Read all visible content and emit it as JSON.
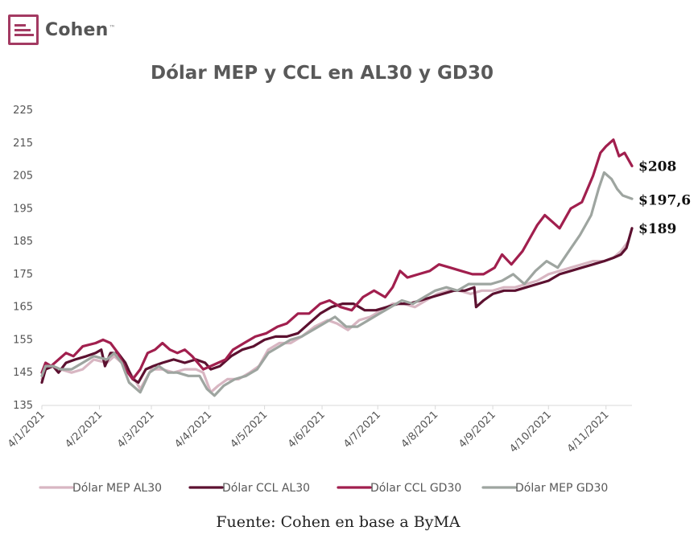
{
  "logo": {
    "text": "Cohen",
    "tm": "™"
  },
  "source": "Fuente: Cohen en base a ByMA",
  "colors": {
    "mep_al30": "#d8b6c2",
    "ccl_al30": "#5c1130",
    "ccl_gd30": "#a11f4e",
    "mep_gd30": "#9ea5a0"
  },
  "chart_data": {
    "type": "line",
    "title": "Dólar MEP y CCL en AL30 y GD30",
    "xlabel": "",
    "ylabel": "",
    "ylim": [
      135,
      225
    ],
    "yticks": [
      135,
      145,
      155,
      165,
      175,
      185,
      195,
      205,
      215,
      225
    ],
    "xlim": [
      "2021-01-04",
      "2021-11-18"
    ],
    "xticks": [
      {
        "date": "2021-01-04",
        "label": "4/1/2021"
      },
      {
        "date": "2021-02-04",
        "label": "4/2/2021"
      },
      {
        "date": "2021-03-04",
        "label": "4/3/2021"
      },
      {
        "date": "2021-04-04",
        "label": "4/4/2021"
      },
      {
        "date": "2021-05-04",
        "label": "4/5/2021"
      },
      {
        "date": "2021-06-04",
        "label": "4/6/2021"
      },
      {
        "date": "2021-07-04",
        "label": "4/7/2021"
      },
      {
        "date": "2021-08-04",
        "label": "4/8/2021"
      },
      {
        "date": "2021-09-04",
        "label": "4/9/2021"
      },
      {
        "date": "2021-10-04",
        "label": "4/10/2021"
      },
      {
        "date": "2021-11-04",
        "label": "4/11/2021"
      }
    ],
    "grid": false,
    "legend_position": "bottom",
    "series": [
      {
        "name": "Dólar MEP AL30",
        "color": "#d8b6c2",
        "points": [
          [
            "2021-01-04",
            143
          ],
          [
            "2021-01-06",
            146
          ],
          [
            "2021-01-10",
            147
          ],
          [
            "2021-01-14",
            146
          ],
          [
            "2021-01-20",
            145
          ],
          [
            "2021-01-26",
            146
          ],
          [
            "2021-02-01",
            149
          ],
          [
            "2021-02-08",
            148
          ],
          [
            "2021-02-12",
            150
          ],
          [
            "2021-02-18",
            147
          ],
          [
            "2021-02-23",
            143
          ],
          [
            "2021-02-26",
            140
          ],
          [
            "2021-03-04",
            146
          ],
          [
            "2021-03-10",
            146
          ],
          [
            "2021-03-16",
            145
          ],
          [
            "2021-03-22",
            146
          ],
          [
            "2021-03-28",
            146
          ],
          [
            "2021-04-01",
            145
          ],
          [
            "2021-04-05",
            139
          ],
          [
            "2021-04-09",
            141
          ],
          [
            "2021-04-14",
            143
          ],
          [
            "2021-04-20",
            143
          ],
          [
            "2021-04-26",
            145
          ],
          [
            "2021-05-01",
            147
          ],
          [
            "2021-05-06",
            152
          ],
          [
            "2021-05-12",
            154
          ],
          [
            "2021-05-18",
            154
          ],
          [
            "2021-05-24",
            156
          ],
          [
            "2021-05-31",
            159
          ],
          [
            "2021-06-07",
            161
          ],
          [
            "2021-06-12",
            160
          ],
          [
            "2021-06-18",
            158
          ],
          [
            "2021-06-24",
            161
          ],
          [
            "2021-06-30",
            162
          ],
          [
            "2021-07-06",
            164
          ],
          [
            "2021-07-12",
            166
          ],
          [
            "2021-07-18",
            166
          ],
          [
            "2021-07-24",
            165
          ],
          [
            "2021-07-30",
            167
          ],
          [
            "2021-08-05",
            169
          ],
          [
            "2021-08-11",
            170
          ],
          [
            "2021-08-17",
            170
          ],
          [
            "2021-08-23",
            169
          ],
          [
            "2021-08-29",
            170
          ],
          [
            "2021-09-04",
            170
          ],
          [
            "2021-09-10",
            171
          ],
          [
            "2021-09-16",
            171
          ],
          [
            "2021-09-22",
            172
          ],
          [
            "2021-09-28",
            173
          ],
          [
            "2021-10-04",
            175
          ],
          [
            "2021-10-10",
            176
          ],
          [
            "2021-10-16",
            177
          ],
          [
            "2021-10-22",
            178
          ],
          [
            "2021-10-28",
            179
          ],
          [
            "2021-11-03",
            179
          ],
          [
            "2021-11-08",
            180
          ],
          [
            "2021-11-12",
            182
          ],
          [
            "2021-11-16",
            185
          ]
        ]
      },
      {
        "name": "Dólar CCL AL30",
        "color": "#5c1130",
        "points": [
          [
            "2021-01-04",
            142
          ],
          [
            "2021-01-06",
            146
          ],
          [
            "2021-01-10",
            147
          ],
          [
            "2021-01-13",
            145
          ],
          [
            "2021-01-17",
            148
          ],
          [
            "2021-01-22",
            149
          ],
          [
            "2021-01-28",
            150
          ],
          [
            "2021-02-02",
            151
          ],
          [
            "2021-02-05",
            152
          ],
          [
            "2021-02-07",
            147
          ],
          [
            "2021-02-10",
            151
          ],
          [
            "2021-02-14",
            151
          ],
          [
            "2021-02-18",
            148
          ],
          [
            "2021-02-22",
            143
          ],
          [
            "2021-02-25",
            142
          ],
          [
            "2021-03-01",
            146
          ],
          [
            "2021-03-05",
            147
          ],
          [
            "2021-03-10",
            148
          ],
          [
            "2021-03-16",
            149
          ],
          [
            "2021-03-22",
            148
          ],
          [
            "2021-03-28",
            149
          ],
          [
            "2021-04-02",
            148
          ],
          [
            "2021-04-05",
            146
          ],
          [
            "2021-04-10",
            147
          ],
          [
            "2021-04-16",
            150
          ],
          [
            "2021-04-22",
            152
          ],
          [
            "2021-04-28",
            153
          ],
          [
            "2021-05-04",
            155
          ],
          [
            "2021-05-10",
            156
          ],
          [
            "2021-05-16",
            156
          ],
          [
            "2021-05-22",
            157
          ],
          [
            "2021-05-28",
            160
          ],
          [
            "2021-06-03",
            163
          ],
          [
            "2021-06-09",
            165
          ],
          [
            "2021-06-15",
            166
          ],
          [
            "2021-06-21",
            166
          ],
          [
            "2021-06-27",
            164
          ],
          [
            "2021-07-03",
            164
          ],
          [
            "2021-07-09",
            165
          ],
          [
            "2021-07-15",
            166
          ],
          [
            "2021-07-21",
            166
          ],
          [
            "2021-07-27",
            167
          ],
          [
            "2021-08-02",
            168
          ],
          [
            "2021-08-08",
            169
          ],
          [
            "2021-08-14",
            170
          ],
          [
            "2021-08-20",
            170
          ],
          [
            "2021-08-25",
            171
          ],
          [
            "2021-08-26",
            165
          ],
          [
            "2021-08-30",
            167
          ],
          [
            "2021-09-04",
            169
          ],
          [
            "2021-09-10",
            170
          ],
          [
            "2021-09-16",
            170
          ],
          [
            "2021-09-22",
            171
          ],
          [
            "2021-09-28",
            172
          ],
          [
            "2021-10-04",
            173
          ],
          [
            "2021-10-10",
            175
          ],
          [
            "2021-10-16",
            176
          ],
          [
            "2021-10-22",
            177
          ],
          [
            "2021-10-28",
            178
          ],
          [
            "2021-11-03",
            179
          ],
          [
            "2021-11-08",
            180
          ],
          [
            "2021-11-12",
            181
          ],
          [
            "2021-11-15",
            183
          ],
          [
            "2021-11-18",
            189
          ]
        ]
      },
      {
        "name": "Dólar CCL GD30",
        "color": "#a11f4e",
        "points": [
          [
            "2021-01-04",
            145
          ],
          [
            "2021-01-06",
            148
          ],
          [
            "2021-01-09",
            147
          ],
          [
            "2021-01-13",
            149
          ],
          [
            "2021-01-17",
            151
          ],
          [
            "2021-01-21",
            150
          ],
          [
            "2021-01-26",
            153
          ],
          [
            "2021-02-02",
            154
          ],
          [
            "2021-02-06",
            155
          ],
          [
            "2021-02-10",
            154
          ],
          [
            "2021-02-14",
            151
          ],
          [
            "2021-02-18",
            146
          ],
          [
            "2021-02-22",
            143
          ],
          [
            "2021-02-26",
            146
          ],
          [
            "2021-03-02",
            151
          ],
          [
            "2021-03-06",
            152
          ],
          [
            "2021-03-10",
            154
          ],
          [
            "2021-03-14",
            152
          ],
          [
            "2021-03-18",
            151
          ],
          [
            "2021-03-22",
            152
          ],
          [
            "2021-03-26",
            150
          ],
          [
            "2021-04-01",
            146
          ],
          [
            "2021-04-05",
            147
          ],
          [
            "2021-04-09",
            148
          ],
          [
            "2021-04-13",
            149
          ],
          [
            "2021-04-17",
            152
          ],
          [
            "2021-04-23",
            154
          ],
          [
            "2021-04-29",
            156
          ],
          [
            "2021-05-05",
            157
          ],
          [
            "2021-05-11",
            159
          ],
          [
            "2021-05-16",
            160
          ],
          [
            "2021-05-22",
            163
          ],
          [
            "2021-05-28",
            163
          ],
          [
            "2021-06-03",
            166
          ],
          [
            "2021-06-08",
            167
          ],
          [
            "2021-06-14",
            165
          ],
          [
            "2021-06-20",
            164
          ],
          [
            "2021-06-26",
            168
          ],
          [
            "2021-07-02",
            170
          ],
          [
            "2021-07-08",
            168
          ],
          [
            "2021-07-12",
            171
          ],
          [
            "2021-07-16",
            176
          ],
          [
            "2021-07-20",
            174
          ],
          [
            "2021-07-26",
            175
          ],
          [
            "2021-08-01",
            176
          ],
          [
            "2021-08-06",
            178
          ],
          [
            "2021-08-12",
            177
          ],
          [
            "2021-08-18",
            176
          ],
          [
            "2021-08-24",
            175
          ],
          [
            "2021-08-30",
            175
          ],
          [
            "2021-09-05",
            177
          ],
          [
            "2021-09-09",
            181
          ],
          [
            "2021-09-14",
            178
          ],
          [
            "2021-09-20",
            182
          ],
          [
            "2021-09-24",
            186
          ],
          [
            "2021-09-28",
            190
          ],
          [
            "2021-10-02",
            193
          ],
          [
            "2021-10-06",
            191
          ],
          [
            "2021-10-10",
            189
          ],
          [
            "2021-10-16",
            195
          ],
          [
            "2021-10-22",
            197
          ],
          [
            "2021-10-28",
            205
          ],
          [
            "2021-11-01",
            212
          ],
          [
            "2021-11-04",
            214
          ],
          [
            "2021-11-08",
            216
          ],
          [
            "2021-11-11",
            211
          ],
          [
            "2021-11-14",
            212
          ],
          [
            "2021-11-18",
            208
          ]
        ]
      },
      {
        "name": "Dólar MEP GD30",
        "color": "#9ea5a0",
        "points": [
          [
            "2021-01-04",
            144
          ],
          [
            "2021-01-06",
            147
          ],
          [
            "2021-01-10",
            147
          ],
          [
            "2021-01-14",
            146
          ],
          [
            "2021-01-20",
            146
          ],
          [
            "2021-01-26",
            148
          ],
          [
            "2021-02-01",
            150
          ],
          [
            "2021-02-08",
            149
          ],
          [
            "2021-02-12",
            151
          ],
          [
            "2021-02-16",
            148
          ],
          [
            "2021-02-20",
            142
          ],
          [
            "2021-02-26",
            139
          ],
          [
            "2021-03-03",
            145
          ],
          [
            "2021-03-08",
            147
          ],
          [
            "2021-03-13",
            145
          ],
          [
            "2021-03-18",
            145
          ],
          [
            "2021-03-24",
            144
          ],
          [
            "2021-03-30",
            144
          ],
          [
            "2021-04-03",
            140
          ],
          [
            "2021-04-07",
            138
          ],
          [
            "2021-04-12",
            141
          ],
          [
            "2021-04-18",
            143
          ],
          [
            "2021-04-24",
            144
          ],
          [
            "2021-04-30",
            146
          ],
          [
            "2021-05-06",
            151
          ],
          [
            "2021-05-12",
            153
          ],
          [
            "2021-05-18",
            155
          ],
          [
            "2021-05-24",
            156
          ],
          [
            "2021-05-30",
            158
          ],
          [
            "2021-06-05",
            160
          ],
          [
            "2021-06-11",
            162
          ],
          [
            "2021-06-17",
            159
          ],
          [
            "2021-06-23",
            159
          ],
          [
            "2021-06-29",
            161
          ],
          [
            "2021-07-05",
            163
          ],
          [
            "2021-07-11",
            165
          ],
          [
            "2021-07-17",
            167
          ],
          [
            "2021-07-23",
            166
          ],
          [
            "2021-07-29",
            168
          ],
          [
            "2021-08-04",
            170
          ],
          [
            "2021-08-10",
            171
          ],
          [
            "2021-08-16",
            170
          ],
          [
            "2021-08-22",
            172
          ],
          [
            "2021-08-28",
            172
          ],
          [
            "2021-09-03",
            172
          ],
          [
            "2021-09-09",
            173
          ],
          [
            "2021-09-15",
            175
          ],
          [
            "2021-09-21",
            172
          ],
          [
            "2021-09-27",
            176
          ],
          [
            "2021-10-03",
            179
          ],
          [
            "2021-10-09",
            177
          ],
          [
            "2021-10-15",
            182
          ],
          [
            "2021-10-21",
            187
          ],
          [
            "2021-10-27",
            193
          ],
          [
            "2021-10-31",
            201
          ],
          [
            "2021-11-03",
            206
          ],
          [
            "2021-11-07",
            204
          ],
          [
            "2021-11-10",
            201
          ],
          [
            "2021-11-13",
            199
          ],
          [
            "2021-11-18",
            198
          ]
        ]
      }
    ],
    "end_labels": [
      {
        "text": "$208",
        "y": 208
      },
      {
        "text": "$197,6",
        "y": 197.6
      },
      {
        "text": "$189",
        "y": 189
      }
    ]
  }
}
